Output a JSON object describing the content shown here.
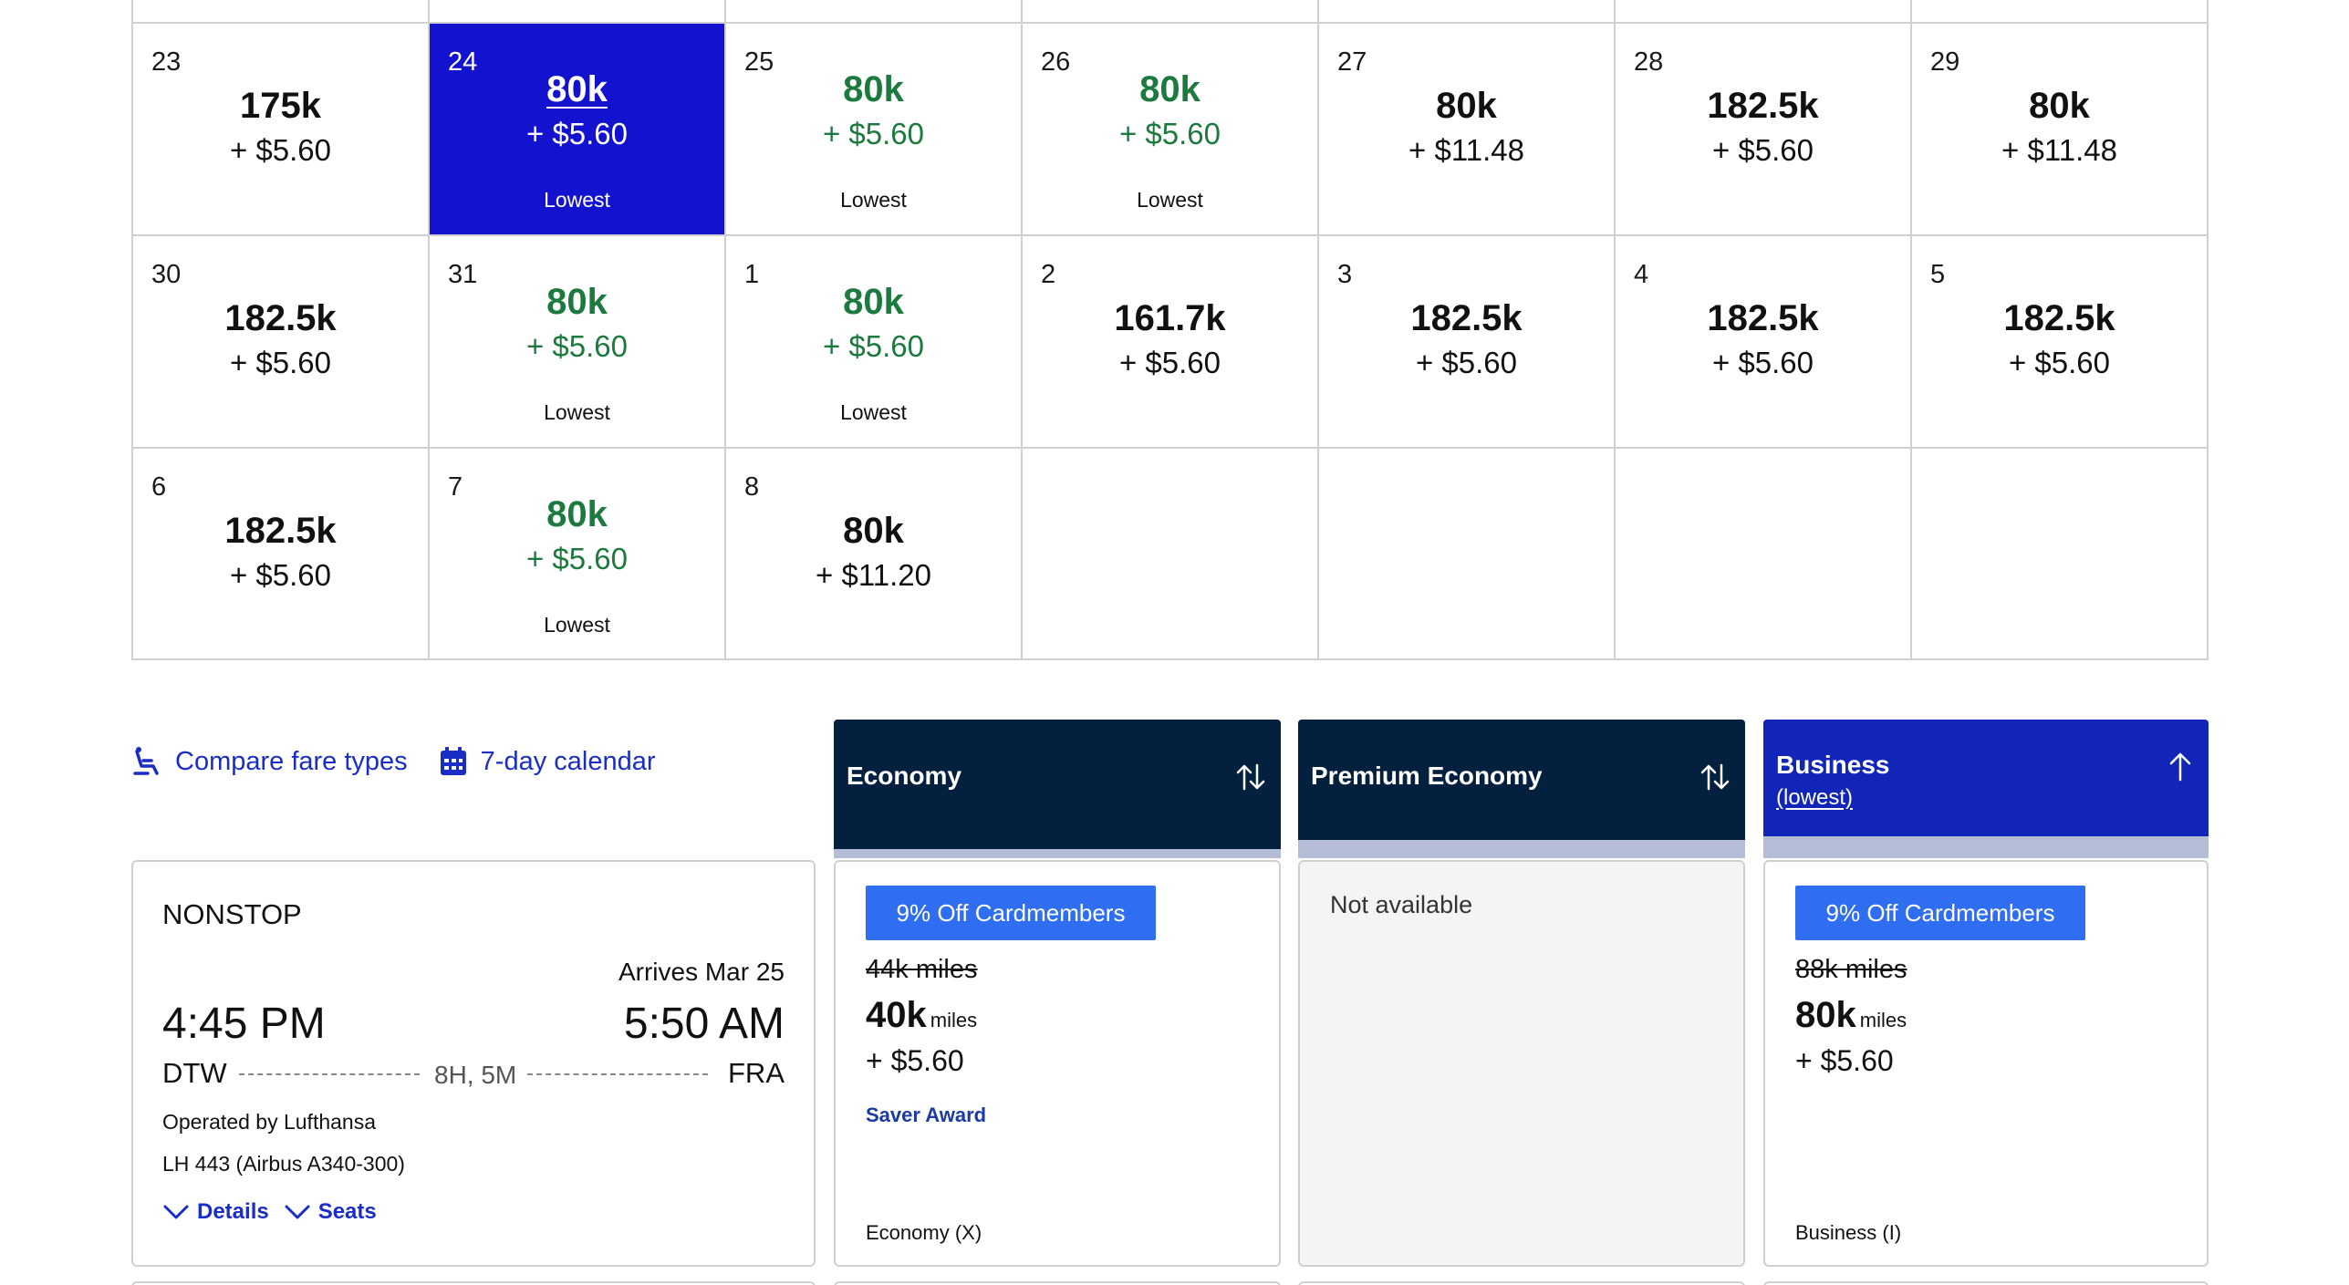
{
  "calendar": {
    "weeks": [
      [
        {
          "day": "23",
          "miles": "175k",
          "fee": "+ $5.60",
          "tag": "",
          "state": "normal"
        },
        {
          "day": "24",
          "miles": "80k",
          "fee": "+ $5.60",
          "tag": "Lowest",
          "state": "selected"
        },
        {
          "day": "25",
          "miles": "80k",
          "fee": "+ $5.60",
          "tag": "Lowest",
          "state": "lowest"
        },
        {
          "day": "26",
          "miles": "80k",
          "fee": "+ $5.60",
          "tag": "Lowest",
          "state": "lowest"
        },
        {
          "day": "27",
          "miles": "80k",
          "fee": "+ $11.48",
          "tag": "",
          "state": "normal"
        },
        {
          "day": "28",
          "miles": "182.5k",
          "fee": "+ $5.60",
          "tag": "",
          "state": "normal"
        },
        {
          "day": "29",
          "miles": "80k",
          "fee": "+ $11.48",
          "tag": "",
          "state": "normal"
        }
      ],
      [
        {
          "day": "30",
          "miles": "182.5k",
          "fee": "+ $5.60",
          "tag": "",
          "state": "normal"
        },
        {
          "day": "31",
          "miles": "80k",
          "fee": "+ $5.60",
          "tag": "Lowest",
          "state": "lowest"
        },
        {
          "day": "1",
          "miles": "80k",
          "fee": "+ $5.60",
          "tag": "Lowest",
          "state": "lowest"
        },
        {
          "day": "2",
          "miles": "161.7k",
          "fee": "+ $5.60",
          "tag": "",
          "state": "normal"
        },
        {
          "day": "3",
          "miles": "182.5k",
          "fee": "+ $5.60",
          "tag": "",
          "state": "normal"
        },
        {
          "day": "4",
          "miles": "182.5k",
          "fee": "+ $5.60",
          "tag": "",
          "state": "normal"
        },
        {
          "day": "5",
          "miles": "182.5k",
          "fee": "+ $5.60",
          "tag": "",
          "state": "normal"
        }
      ],
      [
        {
          "day": "6",
          "miles": "182.5k",
          "fee": "+ $5.60",
          "tag": "",
          "state": "normal"
        },
        {
          "day": "7",
          "miles": "80k",
          "fee": "+ $5.60",
          "tag": "Lowest",
          "state": "lowest"
        },
        {
          "day": "8",
          "miles": "80k",
          "fee": "+ $11.20",
          "tag": "",
          "state": "normal"
        },
        {
          "day": "",
          "miles": "",
          "fee": "",
          "tag": "",
          "state": "empty"
        },
        {
          "day": "",
          "miles": "",
          "fee": "",
          "tag": "",
          "state": "empty"
        },
        {
          "day": "",
          "miles": "",
          "fee": "",
          "tag": "",
          "state": "empty"
        },
        {
          "day": "",
          "miles": "",
          "fee": "",
          "tag": "",
          "state": "empty"
        }
      ]
    ],
    "colors": {
      "selected": "#1313cf",
      "lowest": "#1d7a3e"
    }
  },
  "links": {
    "compare": "Compare fare types",
    "calendar7": "7-day calendar"
  },
  "fare_headers": {
    "economy": "Economy",
    "premium": "Premium Economy",
    "business": "Business",
    "business_sub": "(lowest)"
  },
  "flight": {
    "type": "NONSTOP",
    "arrives": "Arrives Mar 25",
    "depart_time": "4:45 PM",
    "arrive_time": "5:50 AM",
    "from": "DTW",
    "to": "FRA",
    "duration": "8H, 5M",
    "operated_by": "Operated by Lufthansa",
    "equipment": "LH 443 (Airbus A340-300)",
    "details": "Details",
    "seats": "Seats"
  },
  "fares": {
    "economy": {
      "badge": "9% Off Cardmembers",
      "old_miles": "44k miles",
      "miles": "40k",
      "unit": "miles",
      "fee": "+ $5.60",
      "award": "Saver Award",
      "class": "Economy (X)"
    },
    "premium": {
      "message": "Not available"
    },
    "business": {
      "badge": "9% Off Cardmembers",
      "old_miles": "88k miles",
      "miles": "80k",
      "unit": "miles",
      "fee": "+ $5.60",
      "class": "Business (I)"
    }
  }
}
